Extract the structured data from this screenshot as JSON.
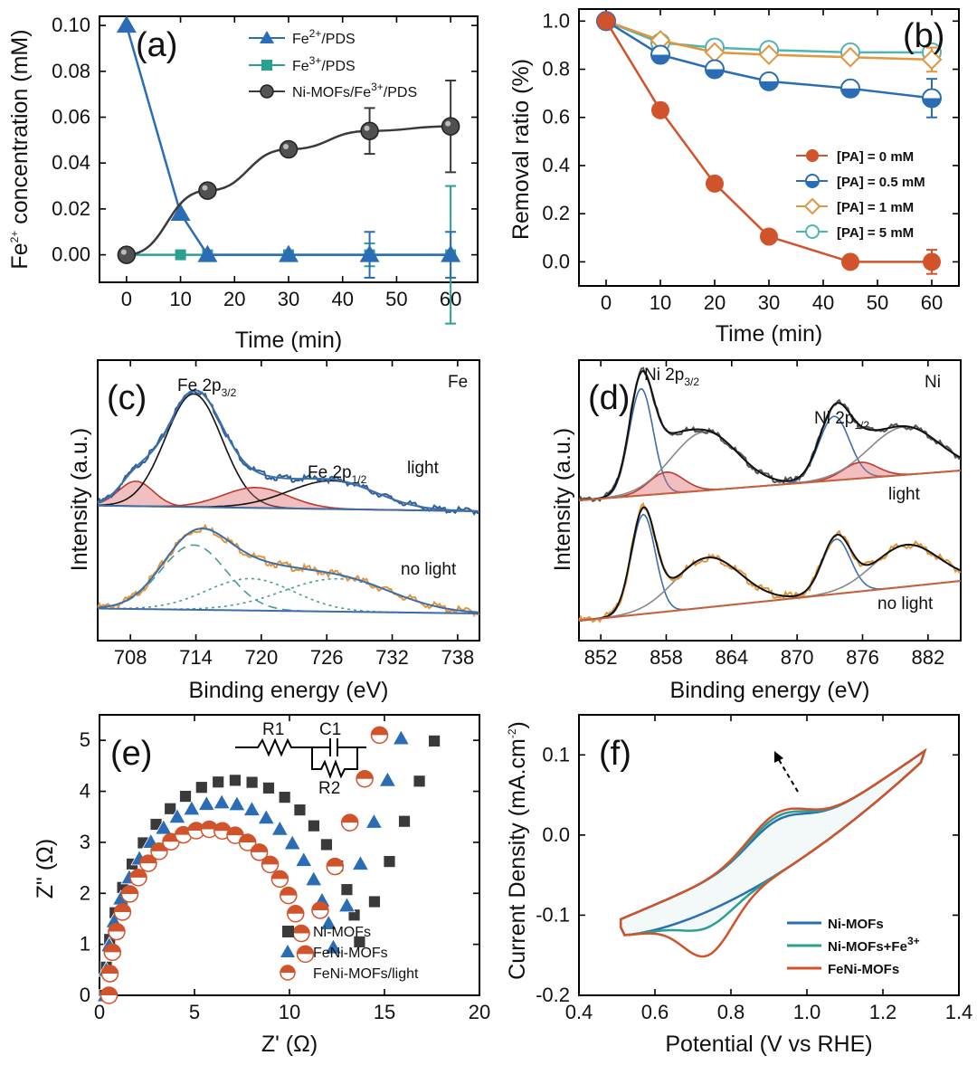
{
  "colors": {
    "blue": "#2a6db5",
    "teal": "#2aa090",
    "darkgray": "#3a3a3a",
    "red": "#d1532b",
    "orange": "#e0963c",
    "cyan": "#4fb5b0",
    "black": "#111111",
    "pink": "#e07070"
  },
  "chart_data": [
    {
      "panel": "(a)",
      "type": "line",
      "xlabel": "Time (min)",
      "ylabel_main": "Fe",
      "ylabel_sup": "2+",
      "ylabel_rest": " concentration (mM)",
      "xlim": [
        -5,
        65
      ],
      "ylim": [
        -0.012,
        0.104
      ],
      "xticks": [
        "0",
        "10",
        "20",
        "30",
        "40",
        "50",
        "60"
      ],
      "xtick_values": [
        0,
        10,
        20,
        30,
        40,
        50,
        60
      ],
      "yticks": [
        "0.00",
        "0.02",
        "0.04",
        "0.06",
        "0.08",
        "0.10"
      ],
      "ytick_values": [
        0,
        0.02,
        0.04,
        0.06,
        0.08,
        0.1
      ],
      "series": [
        {
          "name": "Fe2+/PDS",
          "legend_main": "Fe",
          "legend_sup": "2+",
          "legend_rest": "/PDS",
          "marker": "triangle",
          "color": "#2a6db5",
          "x": [
            0,
            10,
            15,
            30,
            45,
            60
          ],
          "y": [
            0.1,
            0.018,
            0.0,
            0.0,
            0.0,
            0.0
          ],
          "err": [
            0,
            0,
            0,
            0,
            0.01,
            0.01
          ]
        },
        {
          "name": "Fe3+/PDS",
          "legend_main": "Fe",
          "legend_sup": "3+",
          "legend_rest": "/PDS",
          "marker": "square",
          "color": "#2aa090",
          "x": [
            0,
            10,
            15,
            30,
            45,
            60
          ],
          "y": [
            0.0,
            0.0,
            0.0,
            0.0,
            0.0,
            0.0
          ],
          "err": [
            0,
            0,
            0,
            0,
            0.005,
            0.03
          ]
        },
        {
          "name": "Ni-MOFs/Fe3+/PDS",
          "legend_main": "Ni-MOFs/Fe",
          "legend_sup": "3+",
          "legend_rest": "/PDS",
          "marker": "sphere",
          "color": "#3a3a3a",
          "x": [
            0,
            15,
            30,
            45,
            60
          ],
          "y": [
            0.0,
            0.028,
            0.046,
            0.054,
            0.056
          ],
          "err": [
            0,
            0,
            0,
            0.01,
            0.02
          ]
        }
      ]
    },
    {
      "panel": "(b)",
      "type": "line",
      "xlabel": "Time (min)",
      "ylabel": "Removal ratio (%)",
      "xlim": [
        -5,
        65
      ],
      "ylim": [
        -0.1,
        1.05
      ],
      "xticks": [
        "0",
        "10",
        "20",
        "30",
        "40",
        "50",
        "60"
      ],
      "xtick_values": [
        0,
        10,
        20,
        30,
        40,
        50,
        60
      ],
      "yticks": [
        "0.0",
        "0.2",
        "0.4",
        "0.6",
        "0.8",
        "1.0"
      ],
      "ytick_values": [
        0,
        0.2,
        0.4,
        0.6,
        0.8,
        1.0
      ],
      "series": [
        {
          "name": "[PA] = 0 mM",
          "marker": "full",
          "color": "#d1532b",
          "x": [
            0,
            10,
            20,
            30,
            45,
            60
          ],
          "y": [
            1.0,
            0.63,
            0.325,
            0.105,
            0.0,
            0.0
          ],
          "err": [
            0,
            0,
            0,
            0,
            0,
            0.05
          ]
        },
        {
          "name": "[PA] = 0.5 mM",
          "marker": "half",
          "color": "#2a6db5",
          "x": [
            0,
            10,
            20,
            30,
            45,
            60
          ],
          "y": [
            1.0,
            0.86,
            0.8,
            0.75,
            0.72,
            0.68
          ],
          "err": [
            0,
            0,
            0,
            0,
            0,
            0.08
          ]
        },
        {
          "name": "[PA] = 1 mM",
          "marker": "diamond",
          "color": "#e0963c",
          "x": [
            0,
            10,
            20,
            30,
            45,
            60
          ],
          "y": [
            1.0,
            0.92,
            0.87,
            0.86,
            0.85,
            0.84
          ],
          "err": [
            0,
            0,
            0,
            0,
            0,
            0.05
          ]
        },
        {
          "name": "[PA] = 5 mM",
          "marker": "open",
          "color": "#4fb5b0",
          "x": [
            0,
            10,
            20,
            30,
            45,
            60
          ],
          "y": [
            1.0,
            0.91,
            0.89,
            0.88,
            0.87,
            0.87
          ],
          "err": [
            0,
            0,
            0,
            0,
            0,
            0.03
          ]
        }
      ]
    },
    {
      "panel": "(c)",
      "type": "line",
      "element": "Fe",
      "xlabel": "Binding energy (eV)",
      "ylabel": "Intensity (a.u.)",
      "xlim": [
        705,
        740
      ],
      "xticks": [
        "708",
        "714",
        "720",
        "726",
        "732",
        "738"
      ],
      "xtick_values": [
        708,
        714,
        720,
        726,
        732,
        738
      ],
      "peak_main_label": "Fe 2p",
      "peak_main_sub": "3/2",
      "peak_second_label": "Fe 2p",
      "peak_second_sub": "1/2",
      "upper_label": "light",
      "lower_label": "no light",
      "upper_peaks": [
        {
          "center": 708.5,
          "height": 0.22,
          "width": 1.6
        },
        {
          "center": 713.8,
          "height": 1.0,
          "width": 2.6
        },
        {
          "center": 719.5,
          "height": 0.18,
          "width": 3.0
        },
        {
          "center": 726.5,
          "height": 0.25,
          "width": 4.0
        }
      ],
      "lower_peaks": [
        {
          "center": 713.8,
          "height": 0.65,
          "width": 3.0
        },
        {
          "center": 719.0,
          "height": 0.32,
          "width": 4.0
        },
        {
          "center": 727.0,
          "height": 0.33,
          "width": 5.0
        }
      ]
    },
    {
      "panel": "(d)",
      "type": "line",
      "element": "Ni",
      "xlabel": "Binding energy (eV)",
      "ylabel": "Intensity (a.u.)",
      "xlim": [
        850,
        885
      ],
      "xticks": [
        "852",
        "858",
        "864",
        "870",
        "876",
        "882"
      ],
      "xtick_values": [
        852,
        858,
        864,
        870,
        876,
        882
      ],
      "peak_main_label": "Ni 2p",
      "peak_main_sub": "3/2",
      "peak_second_label": "Ni 2p",
      "peak_second_sub": "1/2",
      "upper_label": "light",
      "lower_label": "no light",
      "upper_peaks": [
        {
          "center": 855.7,
          "height": 1.0,
          "width": 1.1
        },
        {
          "center": 858.0,
          "height": 0.2,
          "width": 1.6
        },
        {
          "center": 861.5,
          "height": 0.55,
          "width": 3.0
        },
        {
          "center": 873.4,
          "height": 0.6,
          "width": 1.4
        },
        {
          "center": 875.8,
          "height": 0.15,
          "width": 1.6
        },
        {
          "center": 879.8,
          "height": 0.45,
          "width": 3.2
        }
      ],
      "lower_peaks": [
        {
          "center": 855.9,
          "height": 1.0,
          "width": 1.1
        },
        {
          "center": 861.8,
          "height": 0.5,
          "width": 3.0
        },
        {
          "center": 873.6,
          "height": 0.55,
          "width": 1.3
        },
        {
          "center": 880.0,
          "height": 0.42,
          "width": 3.0
        }
      ]
    },
    {
      "panel": "(e)",
      "type": "scatter",
      "xlabel_main": "Z' (",
      "xlabel_unit": "Ω",
      "xlabel_end": ")",
      "ylabel_main": "Z\" (",
      "ylabel_unit": "Ω",
      "ylabel_end": ")",
      "xlim": [
        0,
        20
      ],
      "ylim": [
        0,
        5.5
      ],
      "xticks": [
        "0",
        "5",
        "10",
        "15",
        "20"
      ],
      "xtick_values": [
        0,
        5,
        10,
        15,
        20
      ],
      "yticks": [
        "0",
        "1",
        "2",
        "3",
        "4",
        "5"
      ],
      "ytick_values": [
        0,
        1,
        2,
        3,
        4,
        5
      ],
      "circuit": {
        "r1": "R1",
        "c1": "C1",
        "r2": "R2"
      },
      "series": [
        {
          "name": "Ni-MOFs",
          "marker": "square",
          "color": "#3a3a3a",
          "rs": 0.3,
          "rct": 13.6,
          "tail_slope": 1.0,
          "tail_start": 14.0,
          "tail_end": 19.2
        },
        {
          "name": "FeNi-MOFs",
          "marker": "triangle",
          "color": "#2a6db5",
          "rs": 0.3,
          "rct": 12.2,
          "tail_slope": 1.15,
          "tail_start": 12.5,
          "tail_end": 17.3
        },
        {
          "name": "FeNi-MOFs/light",
          "marker": "halfcircle",
          "color": "#d1532b",
          "rs": 0.5,
          "rct": 10.5,
          "tail_slope": 1.1,
          "tail_start": 10.7,
          "tail_end": 16.3
        }
      ]
    },
    {
      "panel": "(f)",
      "type": "line",
      "xlabel": "Potential (V vs RHE)",
      "ylabel_main": "Current Density (mA.cm",
      "ylabel_sup": "-2",
      "ylabel_end": ")",
      "xlim": [
        0.4,
        1.4
      ],
      "ylim": [
        -0.2,
        0.15
      ],
      "xticks": [
        "0.4",
        "0.6",
        "0.8",
        "1.0",
        "1.2",
        "1.4"
      ],
      "xtick_values": [
        0.4,
        0.6,
        0.8,
        1.0,
        1.2,
        1.4
      ],
      "yticks": [
        "-0.2",
        "-0.1",
        "0.0",
        "0.1"
      ],
      "ytick_values": [
        -0.2,
        -0.1,
        0.0,
        0.1
      ],
      "series": [
        {
          "name": "Ni-MOFs",
          "legend_main": "Ni-MOFs",
          "legend_sup": "",
          "color": "#2a6db5",
          "lower_dip": -0.1,
          "upper_bump": 0.085
        },
        {
          "name": "Ni-MOFs+Fe3+",
          "legend_main": "Ni-MOFs+Fe",
          "legend_sup": "3+",
          "color": "#2aa090",
          "lower_dip": -0.12,
          "upper_bump": 0.09
        },
        {
          "name": "FeNi-MOFs",
          "legend_main": "FeNi-MOFs",
          "legend_sup": "",
          "color": "#d1532b",
          "lower_dip": -0.155,
          "upper_bump": 0.095
        }
      ]
    }
  ]
}
